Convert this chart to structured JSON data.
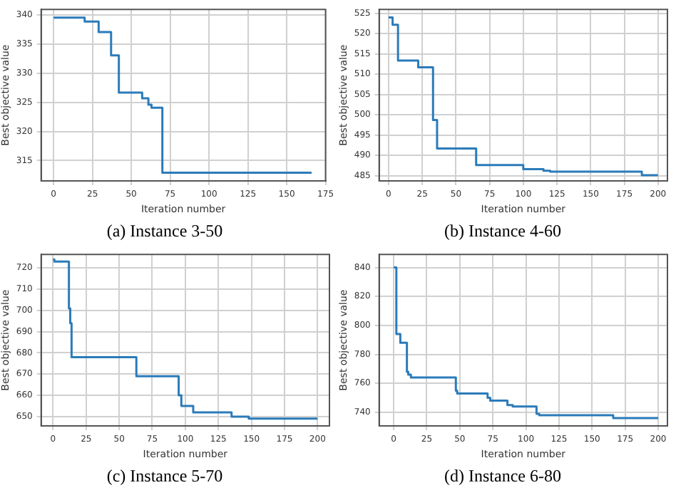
{
  "chart_data": [
    {
      "type": "step",
      "title": "(a) Instance 3-50",
      "xlabel": "Iteration number",
      "ylabel": "Best objective value",
      "xlim": [
        -8,
        175
      ],
      "ylim": [
        311.5,
        341
      ],
      "xticks": [
        0,
        25,
        50,
        75,
        100,
        125,
        150,
        175
      ],
      "yticks": [
        315,
        320,
        325,
        330,
        335,
        340
      ],
      "grid": true,
      "legend": false,
      "series": [
        {
          "color": "#2b7bb9",
          "x": [
            0,
            20,
            29,
            37,
            42,
            57,
            61,
            63,
            70,
            166
          ],
          "values": [
            339.6,
            338.9,
            337.1,
            333.1,
            326.7,
            325.7,
            324.6,
            324.1,
            312.9,
            312.9
          ]
        }
      ]
    },
    {
      "type": "step",
      "title": "(b) Instance 4-60",
      "xlabel": "Iteration number",
      "ylabel": "Best objective value",
      "xlim": [
        -7,
        207
      ],
      "ylim": [
        483.7,
        526
      ],
      "xticks": [
        0,
        25,
        50,
        75,
        100,
        125,
        150,
        175,
        200
      ],
      "yticks": [
        485,
        490,
        495,
        500,
        505,
        510,
        515,
        520,
        525
      ],
      "grid": true,
      "legend": false,
      "series": [
        {
          "color": "#2b7bb9",
          "x": [
            0,
            3,
            7,
            22,
            33,
            36,
            65,
            100,
            115,
            120,
            188,
            200
          ],
          "values": [
            524,
            522.2,
            513.4,
            511.7,
            498.7,
            491.7,
            487.6,
            486.6,
            486.2,
            486,
            485.1,
            485.1
          ]
        }
      ]
    },
    {
      "type": "step",
      "title": "(c) Instance 5-70",
      "xlabel": "Iteration number",
      "ylabel": "Best objective value",
      "xlim": [
        -9,
        209
      ],
      "ylim": [
        645.6,
        726.4
      ],
      "xticks": [
        0,
        25,
        50,
        75,
        100,
        125,
        150,
        175,
        200
      ],
      "yticks": [
        650,
        660,
        670,
        680,
        690,
        700,
        710,
        720
      ],
      "grid": true,
      "legend": false,
      "series": [
        {
          "color": "#2b7bb9",
          "x": [
            0,
            1,
            12,
            13,
            14,
            63,
            95,
            97,
            106,
            135,
            148,
            200
          ],
          "values": [
            724,
            723,
            701,
            694,
            678,
            669,
            660,
            655,
            652,
            650,
            649,
            649
          ]
        }
      ]
    },
    {
      "type": "step",
      "title": "(d) Instance 6-80",
      "xlabel": "Iteration number",
      "ylabel": "Best objective value",
      "xlim": [
        -11,
        207
      ],
      "ylim": [
        730.6,
        849
      ],
      "xticks": [
        0,
        25,
        50,
        75,
        100,
        125,
        150,
        175,
        200
      ],
      "yticks": [
        740,
        760,
        780,
        800,
        820,
        840
      ],
      "grid": true,
      "legend": false,
      "series": [
        {
          "color": "#2b7bb9",
          "x": [
            0,
            2,
            5,
            10,
            11,
            13,
            47,
            48,
            71,
            73,
            86,
            90,
            108,
            110,
            166,
            200
          ],
          "values": [
            840,
            794,
            788,
            768,
            766,
            764,
            755,
            753,
            750,
            748,
            745,
            744,
            739,
            738,
            736,
            736
          ]
        }
      ]
    }
  ]
}
